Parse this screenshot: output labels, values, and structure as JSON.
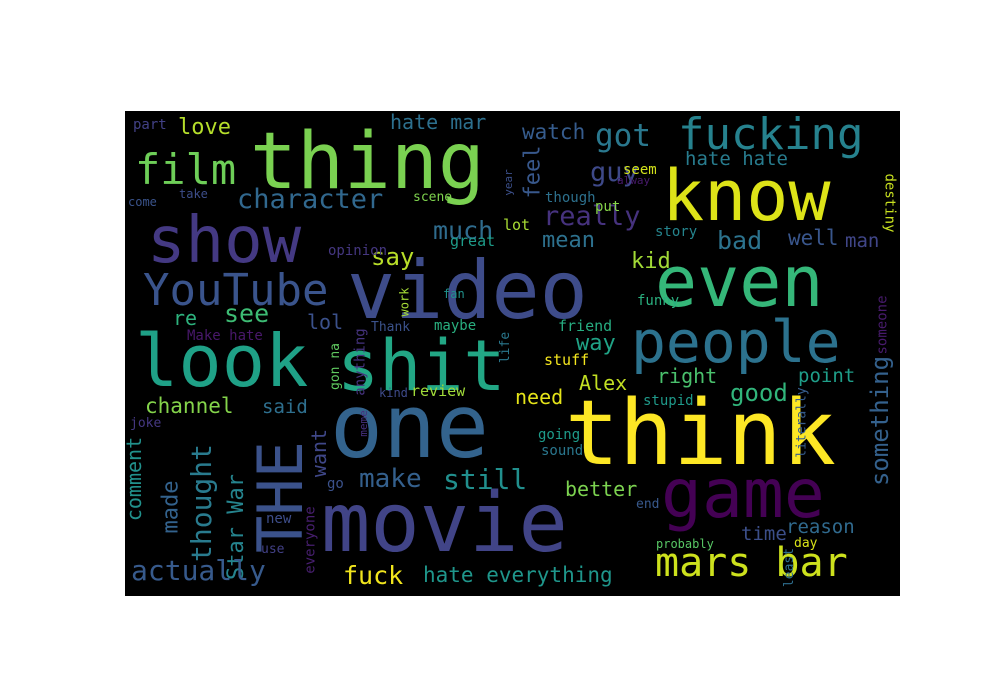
{
  "words": [
    {
      "text": "thing",
      "color": "#7ad151"
    },
    {
      "text": "know",
      "color": "#dde318"
    },
    {
      "text": "fucking",
      "color": "#26828e"
    },
    {
      "text": "film",
      "color": "#6ece58"
    },
    {
      "text": "show",
      "color": "#443983"
    },
    {
      "text": "video",
      "color": "#3e4c8a"
    },
    {
      "text": "even",
      "color": "#35b779"
    },
    {
      "text": "YouTube",
      "color": "#3a548c"
    },
    {
      "text": "people",
      "color": "#2c728e"
    },
    {
      "text": "look",
      "color": "#1fa187"
    },
    {
      "text": "shit",
      "color": "#22a785"
    },
    {
      "text": "one",
      "color": "#33638d"
    },
    {
      "text": "think",
      "color": "#fde725"
    },
    {
      "text": "game",
      "color": "#440154"
    },
    {
      "text": "THE",
      "color": "#3b528b"
    },
    {
      "text": "movie",
      "color": "#414487"
    },
    {
      "text": "mars bar",
      "color": "#cde11d"
    },
    {
      "text": "character",
      "color": "#31688e"
    },
    {
      "text": "really",
      "color": "#46327e"
    },
    {
      "text": "got",
      "color": "#2a788e"
    },
    {
      "text": "guy",
      "color": "#3e4989"
    },
    {
      "text": "love",
      "color": "#b5de2b"
    },
    {
      "text": "hate mar",
      "color": "#2d708e"
    },
    {
      "text": "watch",
      "color": "#365c8d"
    },
    {
      "text": "feel",
      "color": "#38588c"
    },
    {
      "text": "hate hate",
      "color": "#287c8e"
    },
    {
      "text": "say",
      "color": "#b8de29"
    },
    {
      "text": "much",
      "color": "#2f6c8e"
    },
    {
      "text": "mean",
      "color": "#2d718e"
    },
    {
      "text": "bad",
      "color": "#2c738e"
    },
    {
      "text": "well",
      "color": "#39568c"
    },
    {
      "text": "man",
      "color": "#404688"
    },
    {
      "text": "kid",
      "color": "#a2da37"
    },
    {
      "text": "see",
      "color": "#3dbc74"
    },
    {
      "text": "re",
      "color": "#2db27d"
    },
    {
      "text": "lol",
      "color": "#3b518b"
    },
    {
      "text": "way",
      "color": "#20a386"
    },
    {
      "text": "right",
      "color": "#4ac16d"
    },
    {
      "text": "Alex",
      "color": "#c2df23"
    },
    {
      "text": "good",
      "color": "#31b57b"
    },
    {
      "text": "point",
      "color": "#1f9e89"
    },
    {
      "text": "something",
      "color": "#34618d"
    },
    {
      "text": "channel",
      "color": "#84d44b"
    },
    {
      "text": "said",
      "color": "#2e6f8e"
    },
    {
      "text": "need",
      "color": "#e5e419"
    },
    {
      "text": "thought",
      "color": "#297b8e"
    },
    {
      "text": "made",
      "color": "#33628d"
    },
    {
      "text": "comment",
      "color": "#21918c"
    },
    {
      "text": "Star War",
      "color": "#25848e"
    },
    {
      "text": "want",
      "color": "#3f4788"
    },
    {
      "text": "make",
      "color": "#34608d"
    },
    {
      "text": "still",
      "color": "#218f8d"
    },
    {
      "text": "better",
      "color": "#7cd250"
    },
    {
      "text": "actually",
      "color": "#375a8c"
    },
    {
      "text": "fuck",
      "color": "#f1e51d"
    },
    {
      "text": "hate everything",
      "color": "#1f968b"
    },
    {
      "text": "time",
      "color": "#3c4f8a"
    },
    {
      "text": "reason",
      "color": "#306a8e"
    },
    {
      "text": "part",
      "color": "#424186"
    },
    {
      "text": "Make hate",
      "color": "#48186a"
    },
    {
      "text": "someone",
      "color": "#481b6d"
    },
    {
      "text": "destiny",
      "color": "#c8e020"
    },
    {
      "text": "opinion",
      "color": "#453781"
    },
    {
      "text": "great",
      "color": "#1e9c89"
    },
    {
      "text": "lot",
      "color": "#a8db34"
    },
    {
      "text": "story",
      "color": "#25858e"
    },
    {
      "text": "funny",
      "color": "#2ab07f"
    },
    {
      "text": "friend",
      "color": "#27ad81"
    },
    {
      "text": "stuff",
      "color": "#f4e61e"
    },
    {
      "text": "stupid",
      "color": "#1f9a8a"
    },
    {
      "text": "review",
      "color": "#a0da39"
    },
    {
      "text": "kind",
      "color": "#3e4a89"
    },
    {
      "text": "going",
      "color": "#1e9b8a"
    },
    {
      "text": "sound",
      "color": "#2a778e"
    },
    {
      "text": "literally",
      "color": "#365d8d"
    },
    {
      "text": "end",
      "color": "#38598c"
    },
    {
      "text": "day",
      "color": "#d8e219"
    },
    {
      "text": "probably",
      "color": "#58c765"
    },
    {
      "text": "least",
      "color": "#2e6e8e"
    },
    {
      "text": "new",
      "color": "#3d4d8a"
    },
    {
      "text": "use",
      "color": "#424086"
    },
    {
      "text": "go",
      "color": "#3b528b"
    },
    {
      "text": "everyone",
      "color": "#481f70"
    },
    {
      "text": "joke",
      "color": "#453882"
    },
    {
      "text": "meme",
      "color": "#46307e"
    },
    {
      "text": "Thank",
      "color": "#3b528b"
    },
    {
      "text": "maybe",
      "color": "#29af7f"
    },
    {
      "text": "gon na",
      "color": "#60ca60"
    },
    {
      "text": "anything",
      "color": "#46337f"
    },
    {
      "text": "life",
      "color": "#2a788e"
    },
    {
      "text": "fan",
      "color": "#20928c"
    },
    {
      "text": "work",
      "color": "#a5db36"
    },
    {
      "text": "scene",
      "color": "#7fd34e"
    },
    {
      "text": "put",
      "color": "#86d549"
    },
    {
      "text": "year",
      "color": "#3c508b"
    },
    {
      "text": "seem",
      "color": "#d2e21b"
    },
    {
      "text": "though",
      "color": "#2d718e"
    },
    {
      "text": "alway",
      "color": "#481a6c"
    },
    {
      "text": "take",
      "color": "#3d4e8a"
    },
    {
      "text": "come",
      "color": "#3a538b"
    }
  ]
}
